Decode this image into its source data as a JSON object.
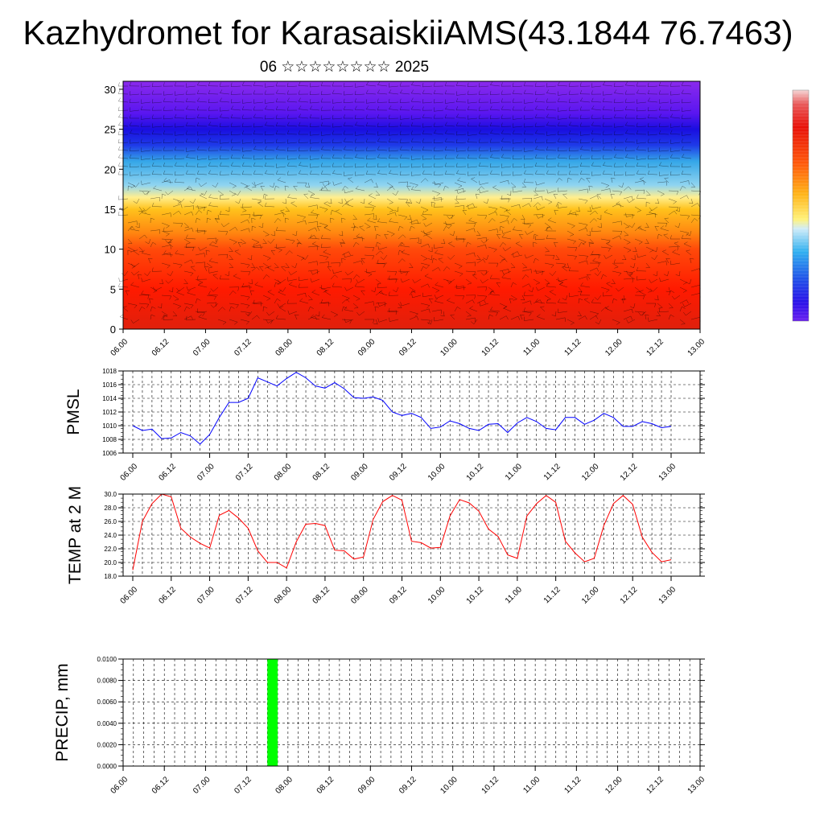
{
  "header": {
    "title": "Kazhydromet for KarasaiskiiAMS(43.1844 76.7463)",
    "subtitle": "06 ☆☆☆☆☆☆☆☆ 2025"
  },
  "colors": {
    "pmsl_line": "#0000ff",
    "temp_line": "#ff0000",
    "precip_bar": "#00ff00",
    "axis": "#000000"
  },
  "time_axis": {
    "tick_labels": [
      "06.00",
      "06.12",
      "07.00",
      "07.12",
      "08.00",
      "08.12",
      "09.00",
      "09.12",
      "10.00",
      "10.12",
      "11.00",
      "11.12",
      "12.00",
      "12.12",
      "13.00"
    ]
  },
  "chart_data": [
    {
      "type": "heatmap",
      "title": "",
      "xlabel": "",
      "ylabel": "",
      "x_range_hours": [
        0,
        168
      ],
      "ylim": [
        0,
        31
      ],
      "y_ticks": [
        0,
        5,
        10,
        15,
        20,
        25,
        30
      ],
      "overlay": "wind barbs",
      "colorbar": "rainbow, purple (low) to red (high)",
      "vertical_profile_levels": [
        0,
        5,
        10,
        12,
        15,
        16.5,
        18,
        21,
        23,
        25,
        27,
        31
      ],
      "profile_colors": [
        "#e0200c",
        "#ff1a00",
        "#ff4a0a",
        "#ff8510",
        "#ffc21c",
        "#ffef90",
        "#8fd4f0",
        "#35a6e8",
        "#1e3ae8",
        "#1a0ee0",
        "#5a16f0",
        "#8a2aec"
      ]
    },
    {
      "type": "line",
      "title": "",
      "ylabel": "PMSL",
      "ylim": [
        1006,
        1018
      ],
      "y_ticks": [
        "1006",
        "1008",
        "1010",
        "1012",
        "1014",
        "1016",
        "1018"
      ],
      "series": [
        {
          "x_hours": [
            0,
            3,
            6,
            9,
            12,
            15,
            18,
            21,
            24,
            27,
            30,
            33,
            36,
            39,
            42,
            45,
            48,
            51,
            54,
            57,
            60,
            63,
            66,
            69,
            72,
            75,
            78,
            81,
            84,
            87,
            90,
            93,
            96,
            99,
            102,
            105,
            108,
            111,
            114,
            117,
            120,
            123,
            126,
            129,
            132,
            135,
            138,
            141,
            144,
            147,
            150,
            153,
            156,
            159,
            162,
            165,
            168
          ],
          "values": [
            1010,
            1009.3,
            1009.5,
            1008.1,
            1008.2,
            1009,
            1008.5,
            1007.3,
            1008.7,
            1011.2,
            1013.4,
            1013.4,
            1014,
            1017,
            1016.4,
            1015.8,
            1016.9,
            1017.8,
            1017,
            1015.8,
            1015.5,
            1016.3,
            1015.4,
            1014.1,
            1014,
            1014.2,
            1013.7,
            1012,
            1011.5,
            1011.8,
            1011.2,
            1009.6,
            1009.8,
            1010.7,
            1010.3,
            1009.6,
            1009.3,
            1010.2,
            1010.3,
            1009,
            1010.4,
            1011.2,
            1010.6,
            1009.6,
            1009.4,
            1011.2,
            1011.2,
            1010.2,
            1010.8,
            1011.8,
            1011.2,
            1009.9,
            1009.9,
            1010.6,
            1010.3,
            1009.7,
            1009.9
          ]
        }
      ]
    },
    {
      "type": "line",
      "title": "",
      "ylabel": "TEMP at 2 M",
      "ylim": [
        18,
        30
      ],
      "y_ticks": [
        "18.0",
        "20.0",
        "22.0",
        "24.0",
        "26.0",
        "28.0",
        "30.0"
      ],
      "series": [
        {
          "x_hours": [
            0,
            3,
            6,
            9,
            12,
            15,
            18,
            21,
            24,
            27,
            30,
            33,
            36,
            39,
            42,
            45,
            48,
            51,
            54,
            57,
            60,
            63,
            66,
            69,
            72,
            75,
            78,
            81,
            84,
            87,
            90,
            93,
            96,
            99,
            102,
            105,
            108,
            111,
            114,
            117,
            120,
            123,
            126,
            129,
            132,
            135,
            138,
            141,
            144,
            147,
            150,
            153,
            156,
            159,
            162,
            165,
            168
          ],
          "values": [
            18.9,
            26,
            28.6,
            30,
            29.6,
            25,
            23.7,
            22.8,
            22.1,
            26.9,
            27.6,
            26.5,
            25,
            21.7,
            20,
            20,
            19.2,
            23,
            25.6,
            25.7,
            25.4,
            21.8,
            21.7,
            20.5,
            20.8,
            26.3,
            28.9,
            29.8,
            29.1,
            23.1,
            22.9,
            22.1,
            22.2,
            26.8,
            29.2,
            28.7,
            27.5,
            24.9,
            23.8,
            21.1,
            20.6,
            26.8,
            28.6,
            29.8,
            28.8,
            23.1,
            21.4,
            20.1,
            20.6,
            25.4,
            28.6,
            29.8,
            28.5,
            23.7,
            21.5,
            20.1,
            20.4
          ]
        }
      ]
    },
    {
      "type": "bar",
      "title": "",
      "ylabel": "PRECIP, mm",
      "ylim": [
        0,
        0.01
      ],
      "y_ticks": [
        "0.0000",
        "0.0020",
        "0.0040",
        "0.0060",
        "0.0080",
        "0.0100"
      ],
      "bars": [
        {
          "x_hours": [
            42,
            45
          ],
          "value": 0.01
        }
      ]
    }
  ]
}
